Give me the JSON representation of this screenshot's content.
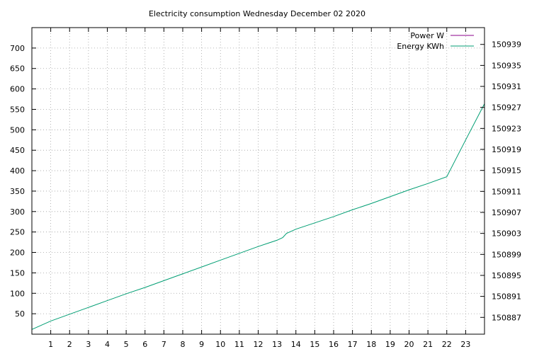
{
  "chart_data": {
    "type": "line",
    "title": "Electricity consumption Wednesday December 02 2020",
    "xlabel": "",
    "ylabel": "",
    "y2label": "",
    "x_ticks": [
      1,
      2,
      3,
      4,
      5,
      6,
      7,
      8,
      9,
      10,
      11,
      12,
      13,
      14,
      15,
      16,
      17,
      18,
      19,
      20,
      21,
      22,
      23
    ],
    "xlim": [
      0,
      24
    ],
    "ylim": [
      0,
      750
    ],
    "y_ticks": [
      50,
      100,
      150,
      200,
      250,
      300,
      350,
      400,
      450,
      500,
      550,
      600,
      650,
      700
    ],
    "y2lim": [
      150883.8,
      150942.2
    ],
    "y2_ticks": [
      150887,
      150891,
      150895,
      150899,
      150903,
      150907,
      150911,
      150915,
      150919,
      150923,
      150927,
      150931,
      150935,
      150939
    ],
    "grid": true,
    "legend_position": "top-right",
    "series": [
      {
        "name": "Power W",
        "axis": "y",
        "color": "#8b008b",
        "x": [],
        "y": []
      },
      {
        "name": "Energy KWh",
        "axis": "y2",
        "color": "#009e73",
        "x": [
          0,
          1,
          2,
          3,
          4,
          5,
          6,
          7,
          8,
          9,
          10,
          11,
          12,
          13,
          13.3,
          13.5,
          14,
          15,
          16,
          17,
          18,
          19,
          20,
          21,
          22,
          23,
          24
        ],
        "y": [
          150884.7,
          150886.3,
          150887.6,
          150888.9,
          150890.2,
          150891.5,
          150892.7,
          150894.0,
          150895.3,
          150896.6,
          150897.9,
          150899.2,
          150900.5,
          150901.7,
          150902.2,
          150903.0,
          150903.8,
          150905.0,
          150906.2,
          150907.5,
          150908.7,
          150910.0,
          150911.3,
          150912.5,
          150913.8,
          150920.8,
          150927.7
        ]
      }
    ]
  }
}
